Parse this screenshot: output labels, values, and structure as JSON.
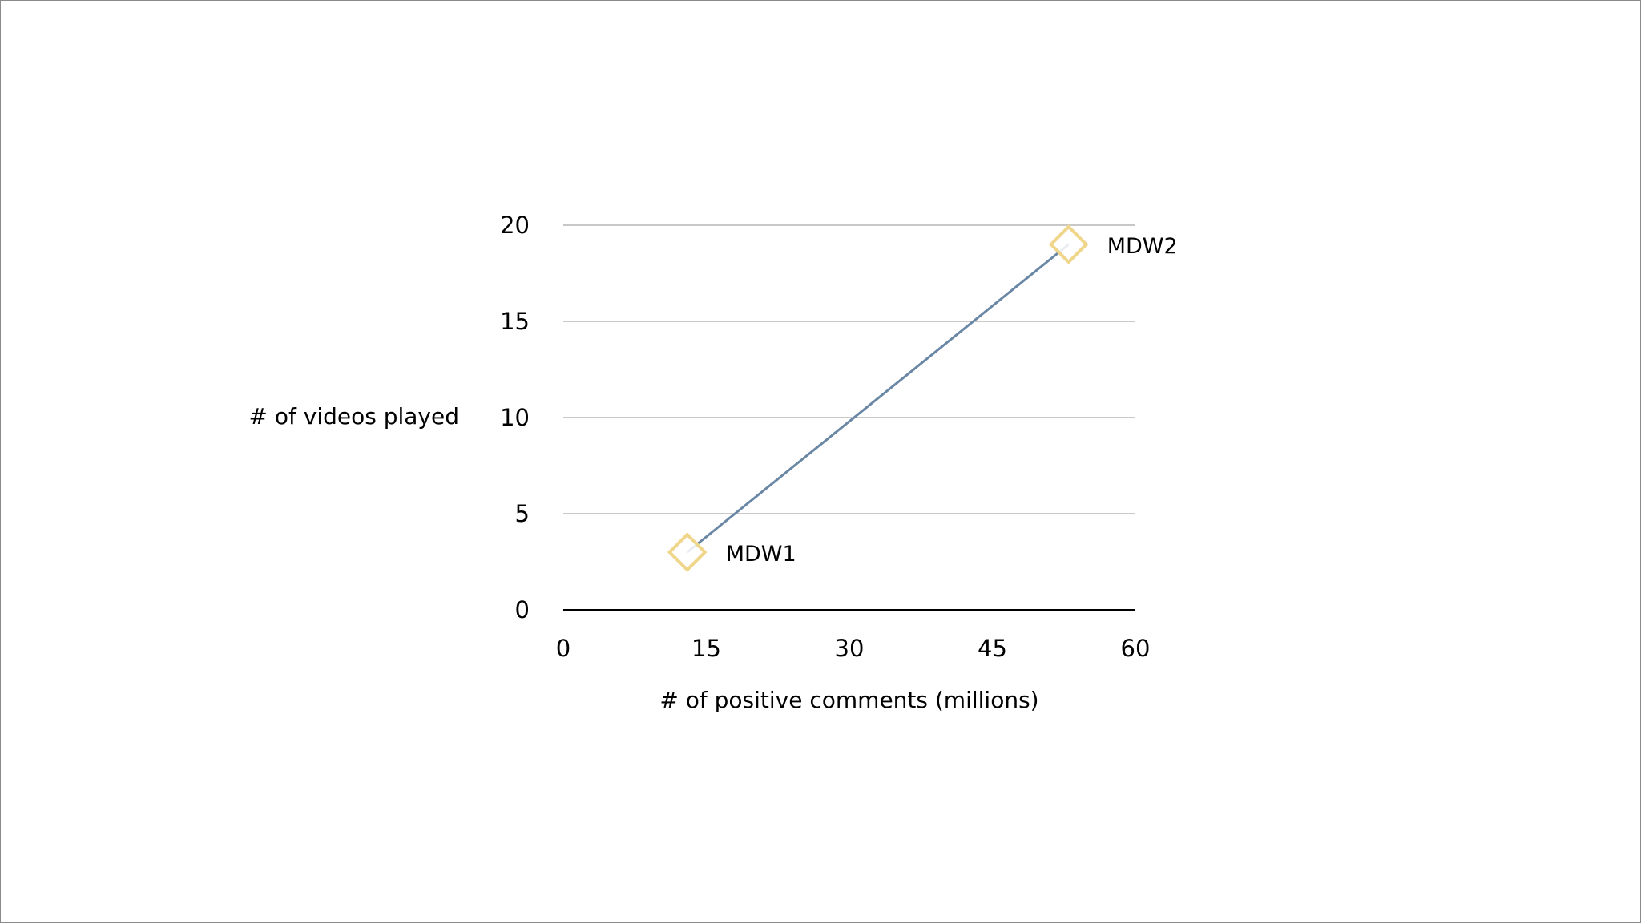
{
  "chart_data": {
    "type": "scatter",
    "title": "",
    "xlabel": "# of positive comments (millions)",
    "ylabel": "# of videos played",
    "xlim": [
      0,
      60
    ],
    "ylim": [
      0,
      20
    ],
    "x_ticks": [
      0,
      15,
      30,
      45,
      60
    ],
    "y_ticks": [
      0,
      5,
      10,
      15,
      20
    ],
    "grid": "horizontal",
    "legend": "none",
    "series": [
      {
        "points": [
          {
            "x": 13,
            "y": 3,
            "label": "MDW1"
          },
          {
            "x": 53,
            "y": 19,
            "label": "MDW2"
          }
        ]
      }
    ],
    "colors": {
      "line": "#6a87a5",
      "marker_stroke": "#f0d68a",
      "marker_fill": "#ffffff",
      "gridline": "#b5b5b5",
      "axis": "#000000"
    }
  }
}
